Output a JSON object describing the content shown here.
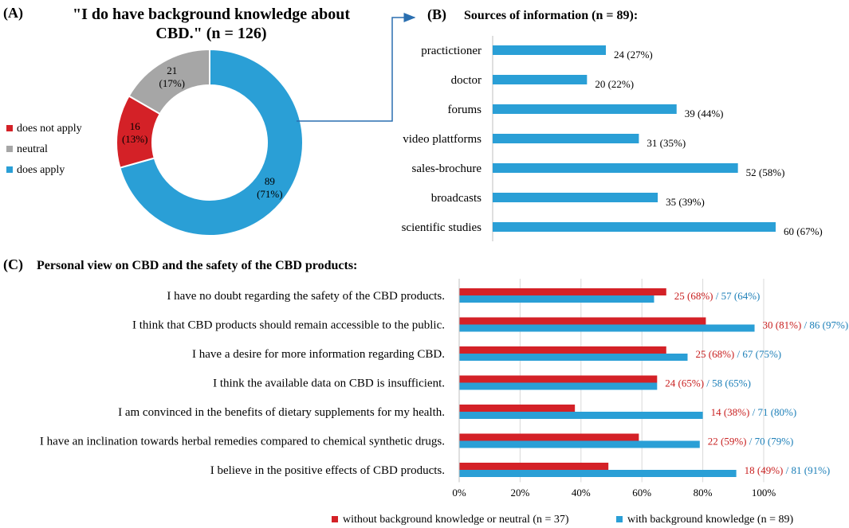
{
  "panel_a": {
    "label": "(A)",
    "title_line1": "\"I do have background knowledge about",
    "title_line2": "CBD.\" (n = 126)"
  },
  "panel_b": {
    "label": "(B)",
    "title": "Sources of information (n = 89):"
  },
  "panel_c": {
    "label": "(C)",
    "title": "Personal view on CBD and the safety of the CBD products:"
  },
  "colors": {
    "blue": "#2a9fd6",
    "red": "#d42127",
    "gray": "#a6a6a6",
    "red_text": "#c81e1e",
    "blue_text": "#1c7fb8",
    "grid": "#d9d9d9",
    "axis": "#bfbfbf"
  },
  "chart_data": [
    {
      "id": "A",
      "type": "pie",
      "donut": true,
      "title": "\"I do have background knowledge about CBD.\" (n = 126)",
      "slices": [
        {
          "label": "does apply",
          "value": 89,
          "count": "89",
          "pct": "(71%)",
          "color": "#2a9fd6"
        },
        {
          "label": "does not apply",
          "value": 16,
          "count": "16",
          "pct": "(13%)",
          "color": "#d42127"
        },
        {
          "label": "neutral",
          "value": 21,
          "count": "21",
          "pct": "(17%)",
          "color": "#a6a6a6"
        }
      ],
      "legend": [
        "does not apply",
        "neutral",
        "does apply"
      ],
      "legend_colors": [
        "#d42127",
        "#a6a6a6",
        "#2a9fd6"
      ]
    },
    {
      "id": "B",
      "type": "bar",
      "orientation": "horizontal",
      "title": "Sources of information (n = 89):",
      "categories": [
        "practictioner",
        "doctor",
        "forums",
        "video plattforms",
        "sales-brochure",
        "broadcasts",
        "scientific studies"
      ],
      "values": [
        24,
        20,
        39,
        31,
        52,
        35,
        60
      ],
      "labels": [
        "24 (27%)",
        "20 (22%)",
        "39 (44%)",
        "31 (35%)",
        "52 (58%)",
        "35 (39%)",
        "60 (67%)"
      ],
      "xlim": [
        0,
        60
      ]
    },
    {
      "id": "C",
      "type": "bar",
      "orientation": "horizontal",
      "title": "Personal view on CBD and the safety of the CBD products:",
      "categories": [
        "I have no doubt regarding the safety of the CBD products.",
        "I think that CBD products should remain accessible to the public.",
        "I have a desire for more information regarding CBD.",
        "I think the available data on CBD is insufficient.",
        "I am convinced in the benefits of dietary supplements for my health.",
        "I have an inclination towards herbal remedies compared to chemical synthetic drugs.",
        "I believe in the positive effects of CBD products."
      ],
      "series": [
        {
          "name": "without background knowledge or neutral (n = 37)",
          "values": [
            68,
            81,
            68,
            65,
            38,
            59,
            49
          ],
          "labels": [
            "25 (68%)",
            "30 (81%)",
            "25 (68%)",
            "24 (65%)",
            "14 (38%)",
            "22 (59%)",
            "18 (49%)"
          ]
        },
        {
          "name": "with background knowledge (n = 89)",
          "values": [
            64,
            97,
            75,
            65,
            80,
            79,
            91
          ],
          "labels": [
            "57 (64%)",
            "86 (97%)",
            "67 (75%)",
            "58 (65%)",
            "71 (80%)",
            "70 (79%)",
            "81 (91%)"
          ]
        }
      ],
      "xlim": [
        0,
        100
      ],
      "ticks": [
        "0%",
        "20%",
        "40%",
        "60%",
        "80%",
        "100%"
      ],
      "separator": "/"
    }
  ]
}
